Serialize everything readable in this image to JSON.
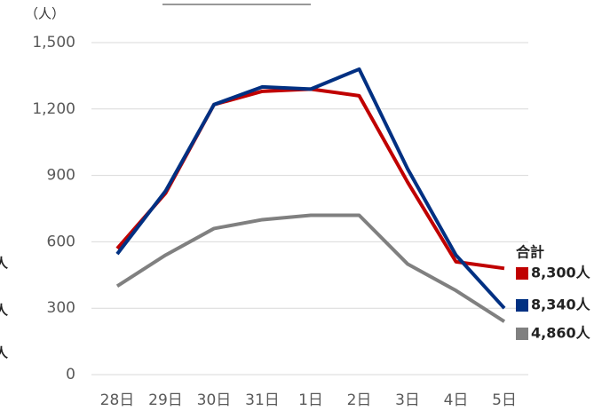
{
  "chart_data": {
    "type": "line",
    "y_label": "（人）",
    "legend_title": "合計",
    "annotations": [
      "人",
      "人",
      "人"
    ],
    "categories": [
      "28日",
      "29日",
      "30日",
      "31日",
      "1日",
      "2日",
      "3日",
      "4日",
      "5日"
    ],
    "series": [
      {
        "name": "8,300人",
        "color": "#c00000",
        "values": [
          570,
          820,
          1220,
          1280,
          1290,
          1260,
          870,
          510,
          480
        ]
      },
      {
        "name": "8,340人",
        "color": "#003082",
        "values": [
          545,
          830,
          1220,
          1300,
          1290,
          1380,
          930,
          540,
          300
        ]
      },
      {
        "name": "4,860人",
        "color": "#808080",
        "values": [
          400,
          540,
          660,
          700,
          720,
          720,
          500,
          380,
          240
        ]
      }
    ],
    "ylim": [
      0,
      1500
    ],
    "yticks": [
      0,
      300,
      600,
      900,
      {
        "value": 1200,
        "label": "1,200"
      },
      {
        "value": 1500,
        "label": "1,500"
      }
    ],
    "grid": true
  }
}
